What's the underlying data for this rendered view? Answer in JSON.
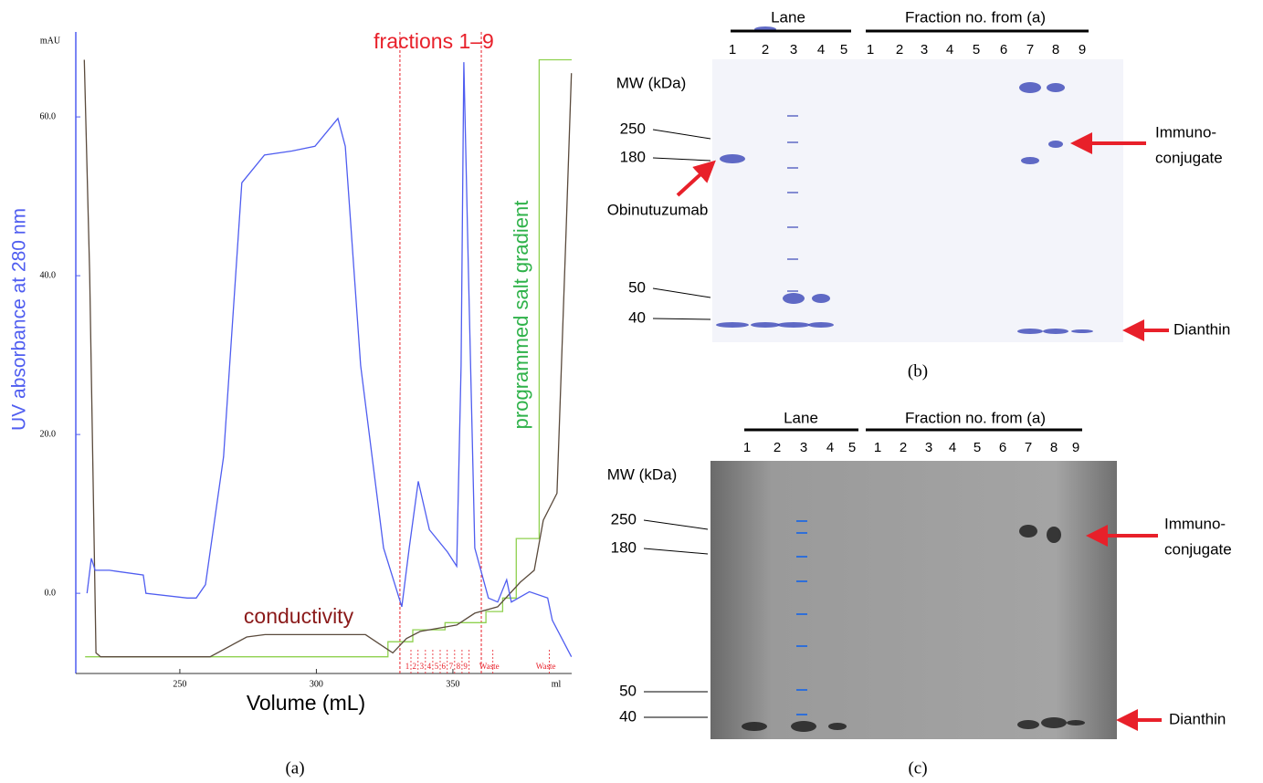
{
  "chart_data": {
    "type": "line",
    "ylabel": "UV absorbance at 280 nm",
    "y_unit": "mAU",
    "xlabel": "Volume (mL)",
    "x_unit": "ml",
    "xlim": [
      211.9,
      393.5
    ],
    "ylim": [
      -10.1,
      70.7
    ],
    "xticks": [
      250,
      300,
      350
    ],
    "yticks": [
      {
        "value": 0,
        "label": "0.0"
      },
      {
        "value": 20,
        "label": "20.0"
      },
      {
        "value": 40,
        "label": "40.0"
      },
      {
        "value": 60,
        "label": "60.0"
      }
    ],
    "series": [
      {
        "color": "#4f5df0",
        "x": [
          216,
          217.6,
          219,
          224.2,
          236.6,
          237.6,
          252.7,
          256,
          259.4,
          266,
          272.7,
          281,
          291,
          299.5,
          307.9,
          310.6,
          316.2,
          324.6,
          331.3,
          334,
          337.3,
          341.4,
          348,
          351.4,
          353,
          354,
          355.7,
          358,
          363,
          366.4,
          369.7,
          371.4,
          378,
          384.7,
          386.4,
          393.4
        ],
        "values": [
          0,
          4.4,
          2.9,
          2.9,
          2.3,
          0,
          -0.6,
          -0.6,
          1.1,
          17.2,
          51.7,
          55.2,
          55.7,
          56.3,
          59.8,
          56.3,
          28.7,
          5.7,
          -1.7,
          5.7,
          14.1,
          8,
          5.2,
          3.4,
          28.7,
          66.9,
          40.2,
          5.7,
          -0.6,
          -1.1,
          1.7,
          -1.1,
          0.2,
          -0.6,
          -3.4,
          -8
        ]
      },
      {
        "name": "conductivity",
        "color": "#5a4a3c",
        "x": [
          215,
          217,
          219.3,
          221,
          261.1,
          274.5,
          281.2,
          318,
          328,
          333,
          338,
          351.4,
          358,
          366.4,
          374.7,
          379.8,
          383.1,
          388.1,
          391.5,
          393.4
        ],
        "values": [
          67.2,
          40.2,
          -7.5,
          -8,
          -8,
          -5.5,
          -5.2,
          -5.2,
          -7.5,
          -5.7,
          -4.8,
          -4,
          -2.5,
          -1.7,
          1.4,
          2.9,
          9.2,
          12.6,
          46,
          65.5
        ]
      },
      {
        "name": "programmed salt gradient",
        "color": "#8fd14f",
        "x": [
          215.3,
          326.2,
          326.2,
          335.3,
          335.3,
          347.1,
          347.1,
          362.1,
          362.1,
          368.2,
          368.2,
          373.2,
          373.2,
          381.6,
          381.6,
          393.5
        ],
        "values": [
          -8,
          -8,
          -6.1,
          -6.1,
          -4.6,
          -4.6,
          -3.7,
          -3.7,
          -2.3,
          -2.3,
          -0.6,
          -0.6,
          6.9,
          6.9,
          67.2,
          67.2
        ]
      }
    ],
    "annotation": "fractions 1–9",
    "fraction_lines": [
      330.6,
      360.4
    ],
    "fractions": {
      "labels": [
        "1",
        "2",
        "3",
        "4",
        "5",
        "6",
        "7",
        "8",
        "9",
        "Waste",
        "Waste"
      ],
      "x": [
        333.3,
        335.9,
        338.6,
        341.3,
        344,
        346.6,
        349.3,
        352,
        354.6,
        363.3,
        384
      ]
    },
    "panel_label": "(a)"
  },
  "gels": [
    {
      "panel_label": "(b)",
      "lane_header": "Lane",
      "fraction_header": "Fraction no. from (a)",
      "lanes": [
        1,
        2,
        3,
        4,
        5
      ],
      "fractions": [
        1,
        2,
        3,
        4,
        5,
        6,
        7,
        8,
        9
      ],
      "mw_title": "MW (kDa)",
      "mw": [
        250,
        180,
        50,
        40
      ],
      "antibody": "Obinutuzumab",
      "immunoconjugate": [
        "Immuno-",
        "conjugate"
      ],
      "dianthin": "Dianthin"
    },
    {
      "panel_label": "(c)",
      "lane_header": "Lane",
      "fraction_header": "Fraction no. from (a)",
      "lanes": [
        1,
        2,
        3,
        4,
        5
      ],
      "fractions": [
        1,
        2,
        3,
        4,
        5,
        6,
        7,
        8,
        9
      ],
      "mw_title": "MW (kDa)",
      "mw": [
        250,
        180,
        50,
        40
      ],
      "immunoconjugate": [
        "Immuno-",
        "conjugate"
      ],
      "dianthin": "Dianthin"
    }
  ]
}
